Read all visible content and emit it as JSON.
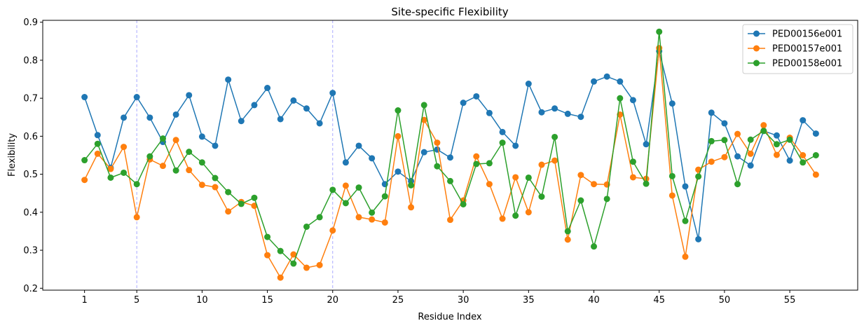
{
  "chart_data": {
    "type": "line",
    "title": "Site-specific Flexibility",
    "xlabel": "Residue Index",
    "ylabel": "Flexibility",
    "xlim": [
      -2.2,
      60.2
    ],
    "ylim": [
      0.195,
      0.905
    ],
    "xticks": [
      1,
      5,
      10,
      15,
      20,
      25,
      30,
      35,
      40,
      45,
      50,
      55
    ],
    "yticks": [
      0.2,
      0.3,
      0.4,
      0.5,
      0.6,
      0.7,
      0.8,
      0.9
    ],
    "ytick_labels": [
      "0.2",
      "0.3",
      "0.4",
      "0.5",
      "0.6",
      "0.7",
      "0.8",
      "0.9"
    ],
    "vlines": [
      5,
      20
    ],
    "vline_color": "#aaaaff",
    "grid": false,
    "legend_position": "top-right",
    "x": [
      1,
      2,
      3,
      4,
      5,
      6,
      7,
      8,
      9,
      10,
      11,
      12,
      13,
      14,
      15,
      16,
      17,
      18,
      19,
      20,
      21,
      22,
      23,
      24,
      25,
      26,
      27,
      28,
      29,
      30,
      31,
      32,
      33,
      34,
      35,
      36,
      37,
      38,
      39,
      40,
      41,
      42,
      43,
      44,
      45,
      46,
      47,
      48,
      49,
      50,
      51,
      52,
      53,
      54,
      55,
      56,
      57
    ],
    "series": [
      {
        "name": "PED00156e001",
        "color": "#1f77b4",
        "values": [
          0.703,
          0.603,
          0.517,
          0.649,
          0.703,
          0.649,
          0.585,
          0.657,
          0.708,
          0.599,
          0.575,
          0.749,
          0.64,
          0.682,
          0.727,
          0.645,
          0.694,
          0.673,
          0.634,
          0.714,
          0.531,
          0.575,
          0.542,
          0.474,
          0.507,
          0.482,
          0.558,
          0.565,
          0.544,
          0.688,
          0.705,
          0.661,
          0.611,
          0.575,
          0.738,
          0.663,
          0.673,
          0.659,
          0.651,
          0.744,
          0.757,
          0.744,
          0.695,
          0.579,
          0.824,
          0.686,
          0.468,
          0.329,
          0.662,
          0.634,
          0.547,
          0.523,
          0.614,
          0.602,
          0.536,
          0.642,
          0.607
        ]
      },
      {
        "name": "PED00157e001",
        "color": "#ff7f0e",
        "values": [
          0.485,
          0.554,
          0.514,
          0.572,
          0.387,
          0.539,
          0.522,
          0.59,
          0.511,
          0.472,
          0.466,
          0.402,
          0.427,
          0.417,
          0.287,
          0.228,
          0.289,
          0.254,
          0.261,
          0.352,
          0.47,
          0.387,
          0.381,
          0.373,
          0.6,
          0.413,
          0.643,
          0.583,
          0.38,
          0.431,
          0.547,
          0.474,
          0.383,
          0.492,
          0.4,
          0.525,
          0.536,
          0.328,
          0.498,
          0.474,
          0.473,
          0.657,
          0.492,
          0.488,
          0.832,
          0.444,
          0.283,
          0.512,
          0.533,
          0.545,
          0.606,
          0.554,
          0.629,
          0.551,
          0.596,
          0.55,
          0.499
        ]
      },
      {
        "name": "PED00158e001",
        "color": "#2ca02c",
        "values": [
          0.537,
          0.58,
          0.491,
          0.504,
          0.474,
          0.547,
          0.594,
          0.51,
          0.559,
          0.531,
          0.49,
          0.453,
          0.422,
          0.438,
          0.335,
          0.298,
          0.265,
          0.362,
          0.387,
          0.459,
          0.424,
          0.465,
          0.399,
          0.442,
          0.668,
          0.471,
          0.682,
          0.521,
          0.482,
          0.421,
          0.527,
          0.529,
          0.583,
          0.391,
          0.491,
          0.441,
          0.598,
          0.35,
          0.431,
          0.31,
          0.435,
          0.7,
          0.533,
          0.475,
          0.875,
          0.495,
          0.377,
          0.494,
          0.587,
          0.59,
          0.474,
          0.591,
          0.614,
          0.579,
          0.591,
          0.531,
          0.55
        ]
      }
    ]
  }
}
